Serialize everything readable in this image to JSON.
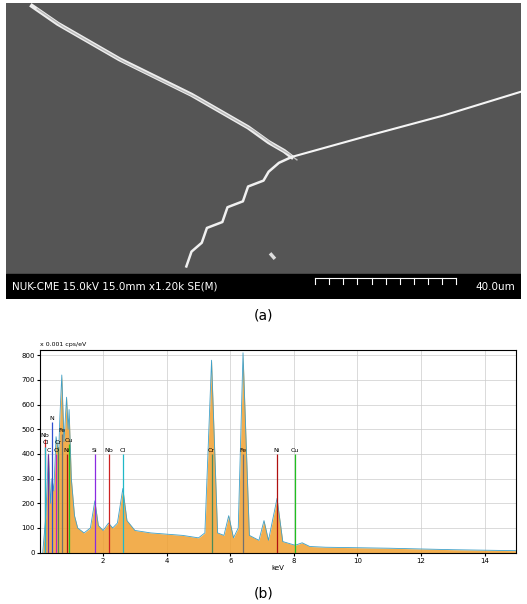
{
  "image_panel": {
    "caption": "(a)",
    "info_bar": "NUK-CME 15.0kV 15.0mm x1.20k SE(M)",
    "scale_bar": "40.0um"
  },
  "chart_data": {
    "type": "area",
    "caption": "(b)",
    "xlabel": "keV",
    "ylabel": "x 0.001 cps/eV",
    "x": [
      0.1,
      0.2,
      0.28,
      0.35,
      0.39,
      0.45,
      0.52,
      0.6,
      0.64,
      0.7,
      0.77,
      0.85,
      0.9,
      0.93,
      1.0,
      1.1,
      1.2,
      1.4,
      1.6,
      1.74,
      1.85,
      2.0,
      2.17,
      2.3,
      2.45,
      2.62,
      2.75,
      3.0,
      3.5,
      4.0,
      4.5,
      5.0,
      5.2,
      5.41,
      5.6,
      5.8,
      5.95,
      6.1,
      6.25,
      6.4,
      6.6,
      6.9,
      7.06,
      7.2,
      7.47,
      7.65,
      8.04,
      8.26,
      8.5,
      9.0,
      10,
      11,
      12,
      13,
      14,
      15
    ],
    "values": [
      0,
      150,
      400,
      200,
      300,
      250,
      470,
      400,
      550,
      720,
      450,
      630,
      500,
      580,
      300,
      150,
      100,
      80,
      100,
      210,
      110,
      90,
      120,
      100,
      120,
      260,
      130,
      90,
      80,
      75,
      70,
      60,
      80,
      780,
      80,
      70,
      150,
      60,
      100,
      810,
      70,
      50,
      130,
      50,
      220,
      45,
      30,
      40,
      25,
      22,
      20,
      18,
      15,
      12,
      10,
      8
    ],
    "color": "#f0a030",
    "xlim": [
      0,
      15
    ],
    "ylim": [
      0,
      820
    ],
    "xticks": [
      2,
      4,
      6,
      8,
      10,
      12,
      14
    ],
    "yticks": [
      0,
      100,
      200,
      300,
      400,
      500,
      600,
      700,
      800
    ],
    "grid": true,
    "markers": [
      {
        "name": "Nb",
        "energy": 0.17,
        "height": 460,
        "color": "#cc2222"
      },
      {
        "name": "Cl",
        "energy": 0.18,
        "height": 430,
        "color": "#20b8c8"
      },
      {
        "name": "C",
        "energy": 0.28,
        "height": 400,
        "color": "#7030a0"
      },
      {
        "name": "N",
        "energy": 0.39,
        "height": 530,
        "color": "#3050d0"
      },
      {
        "name": "O",
        "energy": 0.52,
        "height": 400,
        "color": "#c020c0"
      },
      {
        "name": "Cr",
        "energy": 0.57,
        "height": 430,
        "color": "#4a8a5a"
      },
      {
        "name": "Fe",
        "energy": 0.7,
        "height": 480,
        "color": "#707070"
      },
      {
        "name": "Ni",
        "energy": 0.85,
        "height": 400,
        "color": "#b01010"
      },
      {
        "name": "Cu",
        "energy": 0.93,
        "height": 440,
        "color": "#20c020"
      },
      {
        "name": "Si",
        "energy": 1.74,
        "height": 400,
        "color": "#8a2be2"
      },
      {
        "name": "Nb",
        "energy": 2.17,
        "height": 400,
        "color": "#cc2222"
      },
      {
        "name": "Cl",
        "energy": 2.62,
        "height": 400,
        "color": "#20b8c8"
      },
      {
        "name": "Cr",
        "energy": 5.41,
        "height": 400,
        "color": "#4a8a5a"
      },
      {
        "name": "Fe",
        "energy": 6.4,
        "height": 400,
        "color": "#707070"
      },
      {
        "name": "Ni",
        "energy": 7.47,
        "height": 400,
        "color": "#b01010"
      },
      {
        "name": "Cu",
        "energy": 8.04,
        "height": 400,
        "color": "#20c020"
      }
    ]
  }
}
